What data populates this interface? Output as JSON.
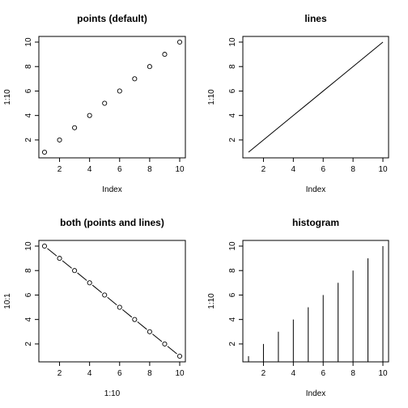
{
  "chart_data": [
    {
      "type": "scatter",
      "title": "points (default)",
      "xlabel": "Index",
      "ylabel": "1:10",
      "x": [
        1,
        2,
        3,
        4,
        5,
        6,
        7,
        8,
        9,
        10
      ],
      "y": [
        1,
        2,
        3,
        4,
        5,
        6,
        7,
        8,
        9,
        10
      ],
      "xlim": [
        1,
        10
      ],
      "ylim": [
        1,
        10
      ],
      "xticks": [
        2,
        4,
        6,
        8,
        10
      ],
      "yticks": [
        2,
        4,
        6,
        8,
        10
      ],
      "grid": false,
      "legend": "none"
    },
    {
      "type": "line",
      "title": "lines",
      "xlabel": "Index",
      "ylabel": "1:10",
      "x": [
        1,
        2,
        3,
        4,
        5,
        6,
        7,
        8,
        9,
        10
      ],
      "y": [
        1,
        2,
        3,
        4,
        5,
        6,
        7,
        8,
        9,
        10
      ],
      "xlim": [
        1,
        10
      ],
      "ylim": [
        1,
        10
      ],
      "xticks": [
        2,
        4,
        6,
        8,
        10
      ],
      "yticks": [
        2,
        4,
        6,
        8,
        10
      ],
      "grid": false,
      "legend": "none"
    },
    {
      "type": "line",
      "style": "both",
      "title": "both (points and lines)",
      "xlabel": "1:10",
      "ylabel": "10:1",
      "x": [
        1,
        2,
        3,
        4,
        5,
        6,
        7,
        8,
        9,
        10
      ],
      "y": [
        10,
        9,
        8,
        7,
        6,
        5,
        4,
        3,
        2,
        1
      ],
      "xlim": [
        1,
        10
      ],
      "ylim": [
        1,
        10
      ],
      "xticks": [
        2,
        4,
        6,
        8,
        10
      ],
      "yticks": [
        2,
        4,
        6,
        8,
        10
      ],
      "grid": false,
      "legend": "none"
    },
    {
      "type": "bar",
      "style": "histogram",
      "title": "histogram",
      "xlabel": "Index",
      "ylabel": "1:10",
      "x": [
        1,
        2,
        3,
        4,
        5,
        6,
        7,
        8,
        9,
        10
      ],
      "y": [
        1,
        2,
        3,
        4,
        5,
        6,
        7,
        8,
        9,
        10
      ],
      "xlim": [
        1,
        10
      ],
      "ylim": [
        1,
        10
      ],
      "xticks": [
        2,
        4,
        6,
        8,
        10
      ],
      "yticks": [
        2,
        4,
        6,
        8,
        10
      ],
      "grid": false,
      "legend": "none"
    }
  ]
}
